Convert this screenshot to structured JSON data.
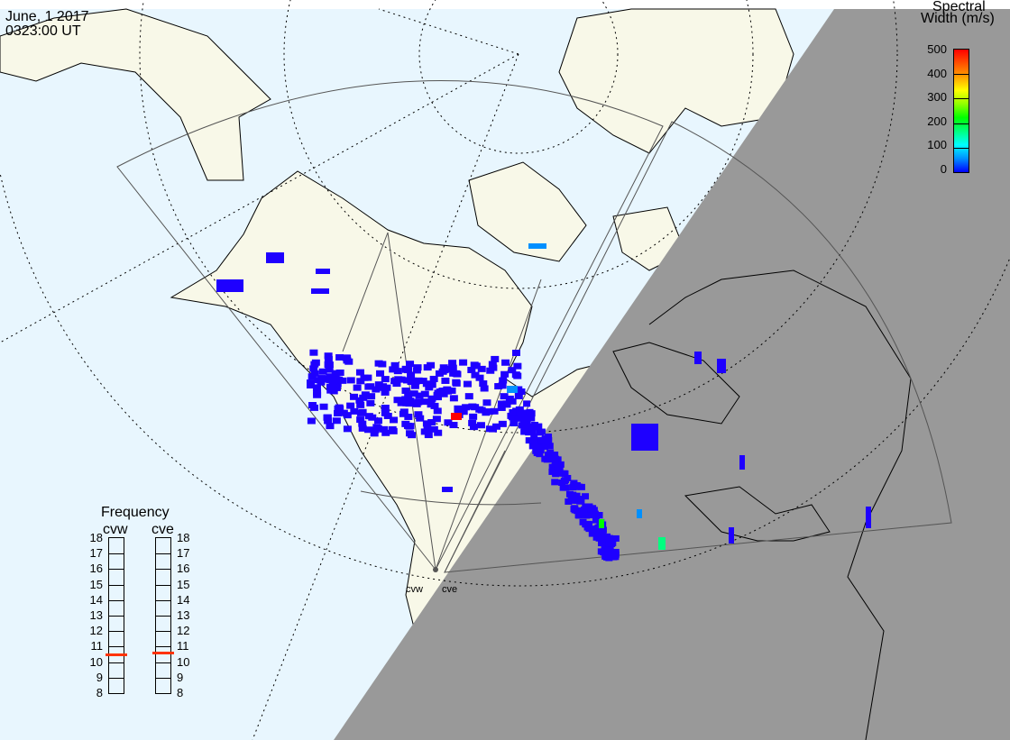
{
  "header": {
    "date": "June, 1 2017",
    "time": "0323:00 UT"
  },
  "colorbar": {
    "title_line1": "Spectral",
    "title_line2": "Width (m/s)",
    "ticks": [
      "500",
      "400",
      "300",
      "200",
      "100",
      "0"
    ],
    "range": [
      0,
      500
    ],
    "colors": [
      "#0000ff",
      "#0090ff",
      "#00ffff",
      "#00ff80",
      "#00ff00",
      "#90ff00",
      "#ffff00",
      "#ffa000",
      "#ff5000",
      "#ff0000"
    ]
  },
  "radars": [
    {
      "code": "cvw",
      "frequency_mhz": 10.5
    },
    {
      "code": "cve",
      "frequency_mhz": 10.6
    }
  ],
  "frequency_panel": {
    "title": "Frequency",
    "ticks": [
      "18",
      "17",
      "16",
      "15",
      "14",
      "13",
      "12",
      "11",
      "10",
      "9",
      "8"
    ],
    "range": [
      8,
      18
    ],
    "marker_color": "#ff3300"
  },
  "colors": {
    "ocean": "#e8f6fe",
    "land": "#f8f8e8",
    "night": "#999999",
    "echo": "#1e00ff"
  }
}
